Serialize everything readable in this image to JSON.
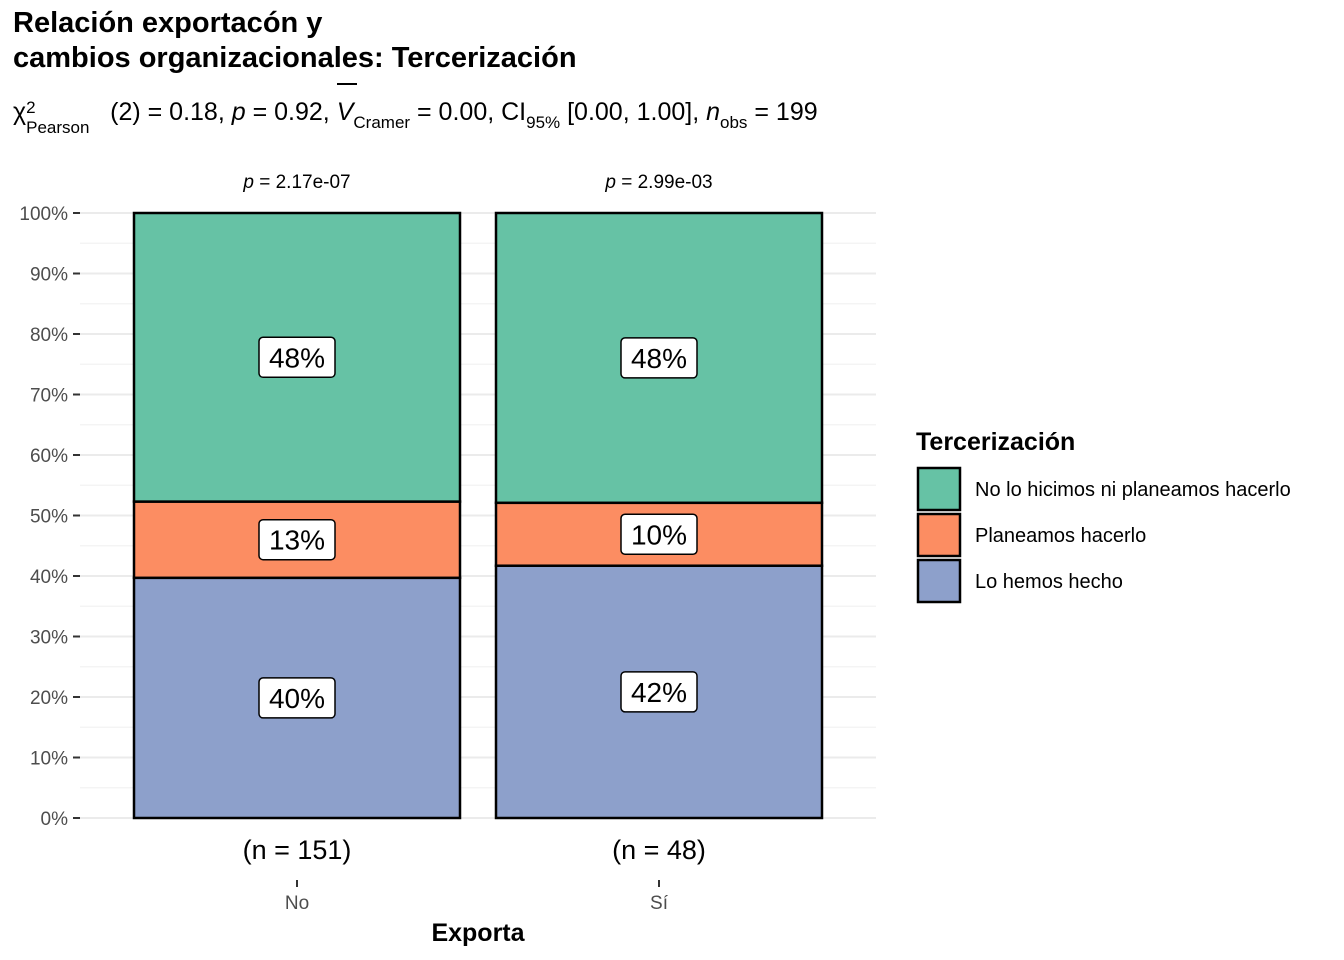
{
  "title_line1": "Relación exportacón y",
  "title_line2": "cambios organizacionales: Tercerización",
  "subtitle": {
    "chi_symbol": "χ",
    "chi_sup": "2",
    "chi_sub": "Pearson",
    "chi_value": "(2) = 0.18,",
    "p_symbol": "p",
    "p_value": "= 0.92,",
    "v_symbol": "V",
    "v_sub": "Cramer",
    "v_value": "= 0.00, CI",
    "ci_sub": "95%",
    "ci_value": "[0.00, 1.00],",
    "n_symbol": "n",
    "n_sub": "obs",
    "n_value": "= 199"
  },
  "chart_data": {
    "type": "bar",
    "stacked": true,
    "categories": [
      "No",
      "Sí"
    ],
    "xlabel": "Exporta",
    "ylabel": "",
    "ylim": [
      0,
      100
    ],
    "yticks": [
      "0%",
      "10%",
      "20%",
      "30%",
      "40%",
      "50%",
      "60%",
      "70%",
      "80%",
      "90%",
      "100%"
    ],
    "series": [
      {
        "name": "Lo hemos hecho",
        "values": [
          39.7,
          41.7
        ],
        "labels": [
          "40%",
          "42%"
        ],
        "color": "#8DA0CB"
      },
      {
        "name": "Planeamos hacerlo",
        "values": [
          12.6,
          10.4
        ],
        "labels": [
          "13%",
          "10%"
        ],
        "color": "#FC8D62"
      },
      {
        "name": "No lo hicimos ni planeamos hacerlo",
        "values": [
          47.7,
          47.9
        ],
        "labels": [
          "48%",
          "48%"
        ],
        "color": "#66C2A5"
      }
    ],
    "n_labels": [
      "(n = 151)",
      "(n = 48)"
    ],
    "p_labels": [
      "= 2.17e-07",
      "= 2.99e-03"
    ],
    "p_symbol": "p",
    "legend_title": "Tercerización",
    "legend_order": [
      "No lo hicimos ni planeamos hacerlo",
      "Planeamos hacerlo",
      "Lo hemos hecho"
    ],
    "legend_position": "right",
    "grid": true
  }
}
